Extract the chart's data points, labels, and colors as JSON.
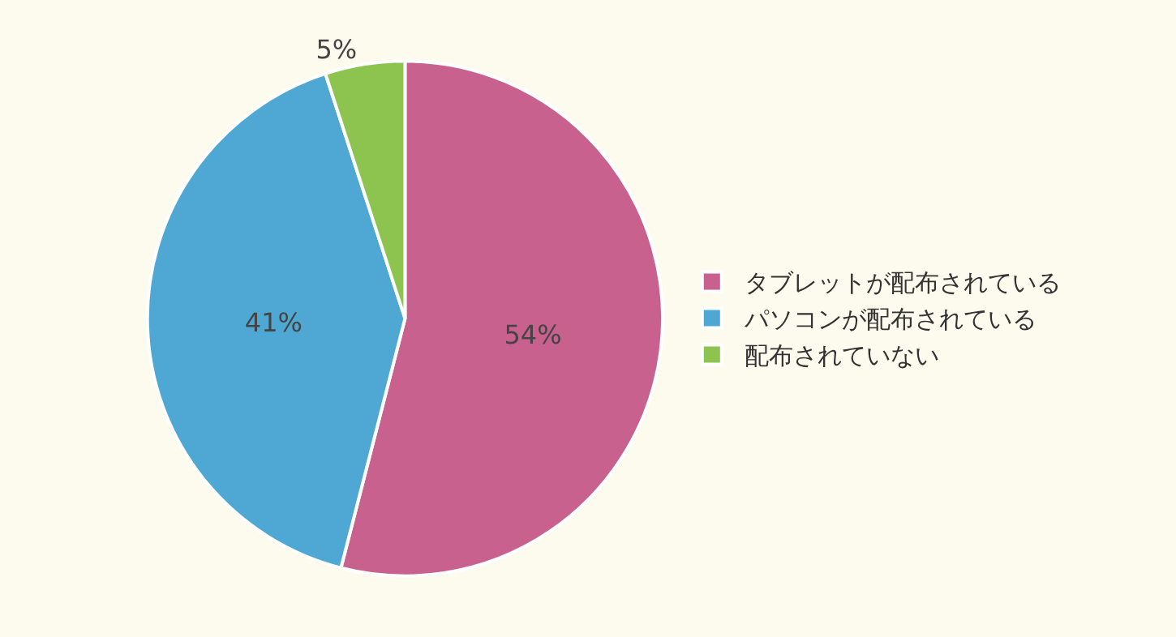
{
  "chart_data": {
    "type": "pie",
    "categories": [
      "タブレットが配布されている",
      "パソコンが配布されている",
      "配布されていない"
    ],
    "values": [
      54,
      41,
      5
    ],
    "value_labels": [
      "54%",
      "41%",
      "5%"
    ],
    "colors": [
      "#c9618f",
      "#4fa8d4",
      "#8dc450"
    ],
    "legend": "right"
  }
}
